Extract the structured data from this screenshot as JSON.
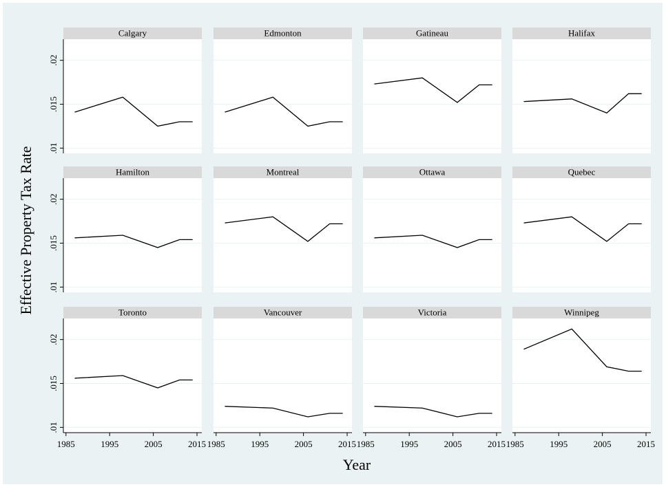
{
  "chart_data": {
    "type": "line",
    "xlabel": "Year",
    "ylabel": "Effective Property Tax Rate",
    "x": [
      1987,
      1998,
      2006,
      2011,
      2014
    ],
    "xlim": [
      1984.4,
      2016.1
    ],
    "xticks": [
      1985,
      1995,
      2005,
      2015
    ],
    "ylim": [
      0.0094,
      0.0224
    ],
    "yticks": [
      {
        "value": 0.01,
        "label": ".01"
      },
      {
        "value": 0.015,
        "label": ".015"
      },
      {
        "value": 0.02,
        "label": ".02"
      }
    ],
    "grid": true,
    "color": "#000000",
    "panels": [
      {
        "title": "Calgary",
        "values": [
          0.0141,
          0.0158,
          0.0125,
          0.013,
          0.013
        ]
      },
      {
        "title": "Edmonton",
        "values": [
          0.0141,
          0.0158,
          0.0125,
          0.013,
          0.013
        ]
      },
      {
        "title": "Gatineau",
        "values": [
          0.0173,
          0.018,
          0.0152,
          0.0172,
          0.0172
        ]
      },
      {
        "title": "Halifax",
        "values": [
          0.0153,
          0.0156,
          0.014,
          0.0162,
          0.0162
        ]
      },
      {
        "title": "Hamilton",
        "values": [
          0.0156,
          0.0159,
          0.0145,
          0.0154,
          0.0154
        ]
      },
      {
        "title": "Montreal",
        "values": [
          0.0173,
          0.018,
          0.0152,
          0.0172,
          0.0172
        ]
      },
      {
        "title": "Ottawa",
        "values": [
          0.0156,
          0.0159,
          0.0145,
          0.0154,
          0.0154
        ]
      },
      {
        "title": "Quebec",
        "values": [
          0.0173,
          0.018,
          0.0152,
          0.0172,
          0.0172
        ]
      },
      {
        "title": "Toronto",
        "values": [
          0.0156,
          0.0159,
          0.0145,
          0.0154,
          0.0154
        ]
      },
      {
        "title": "Vancouver",
        "values": [
          0.0124,
          0.0122,
          0.0112,
          0.0116,
          0.0116
        ]
      },
      {
        "title": "Victoria",
        "values": [
          0.0124,
          0.0122,
          0.0112,
          0.0116,
          0.0116
        ]
      },
      {
        "title": "Winnipeg",
        "values": [
          0.0189,
          0.0212,
          0.0169,
          0.0164,
          0.0164
        ]
      }
    ]
  }
}
